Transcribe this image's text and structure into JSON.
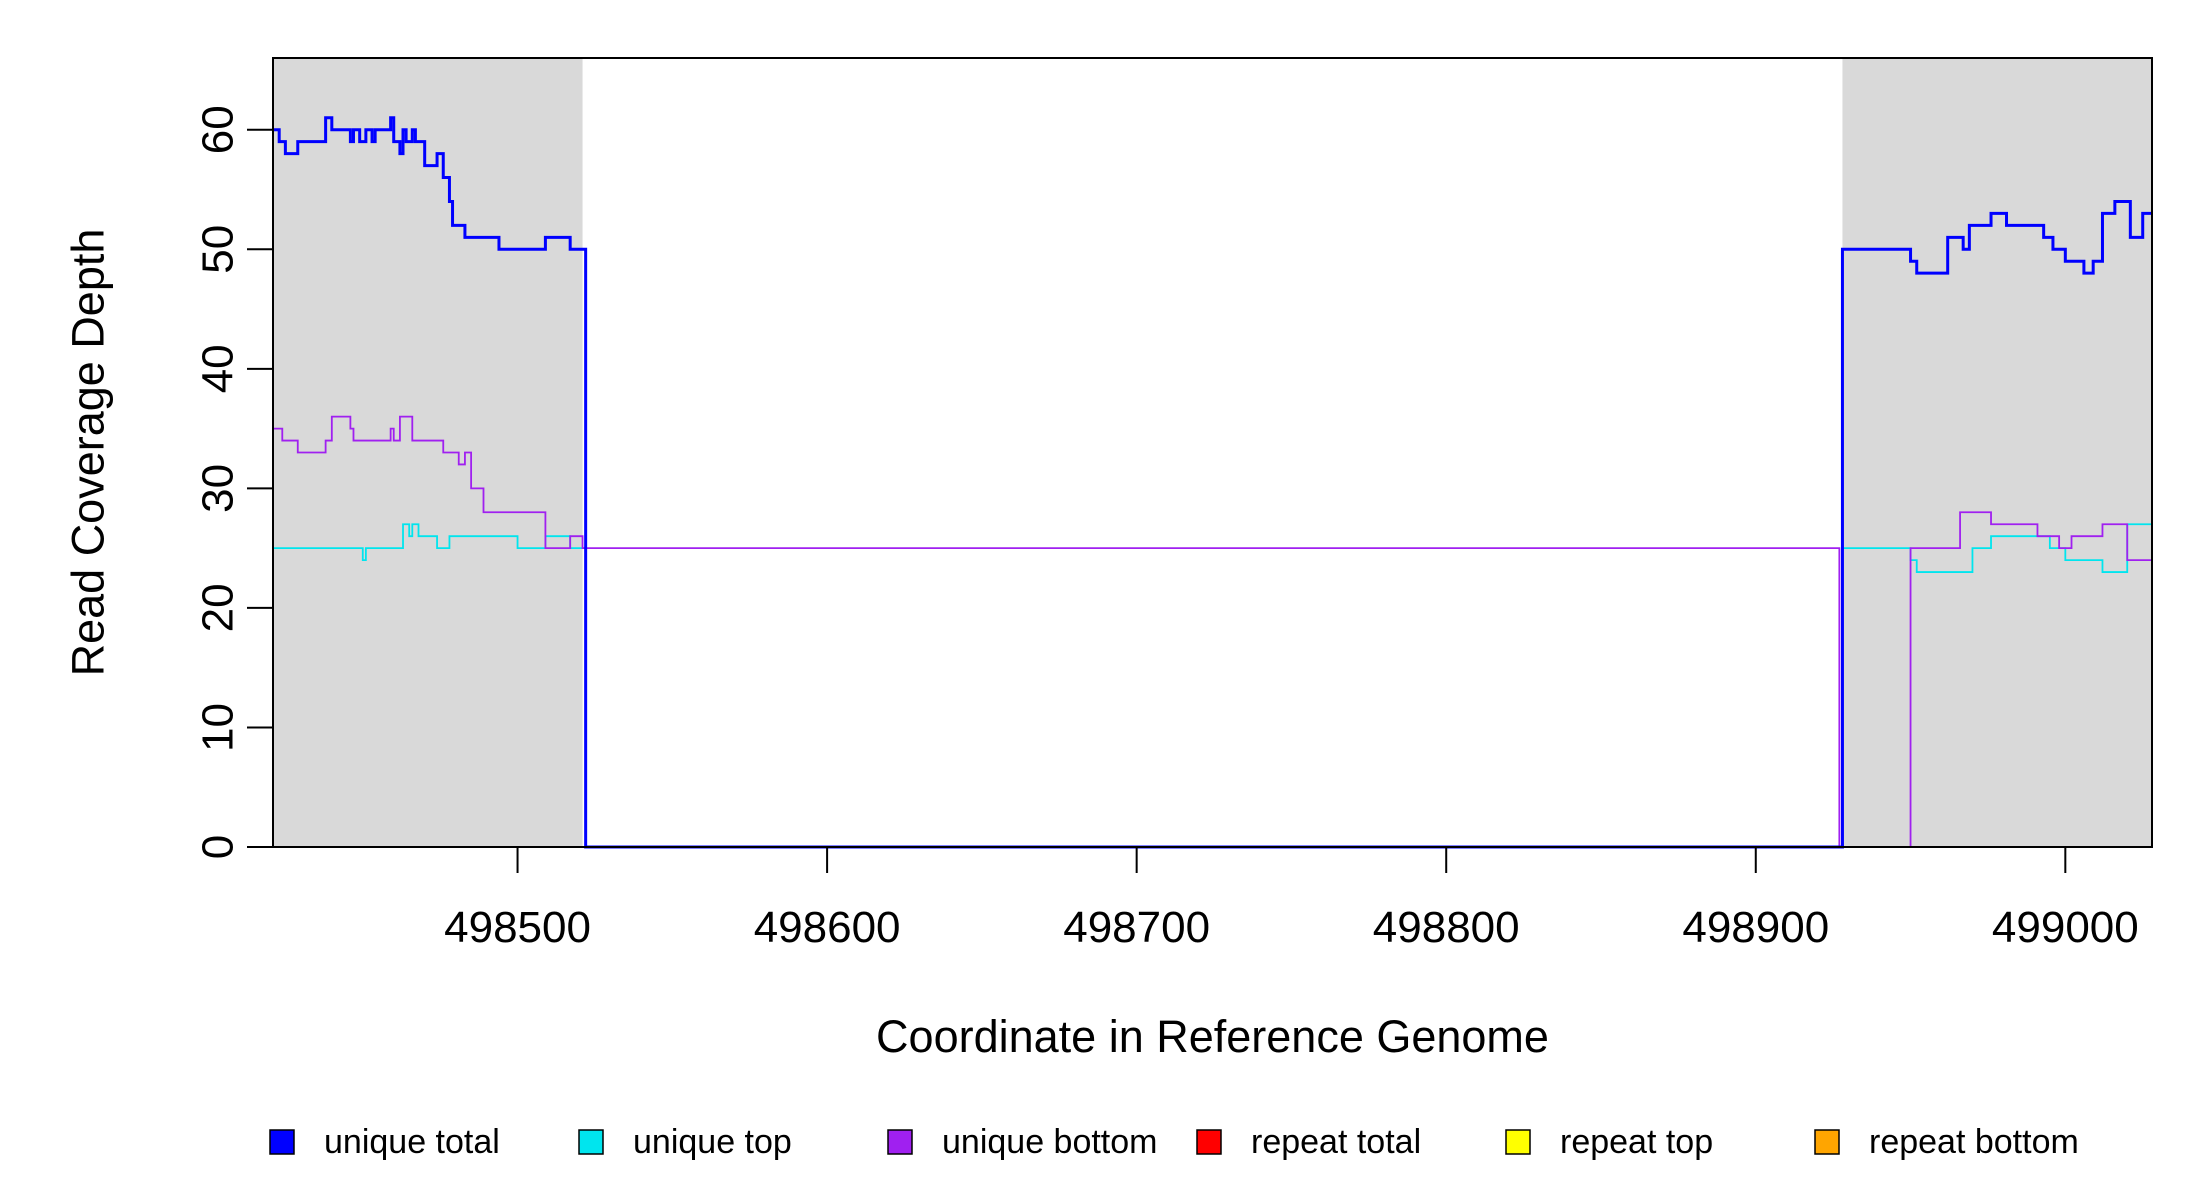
{
  "chart_data": {
    "type": "line",
    "step": true,
    "xlabel": "Coordinate in Reference Genome",
    "ylabel": "Read Coverage Depth",
    "xlim": [
      498421,
      499028
    ],
    "ylim": [
      0,
      66
    ],
    "x_ticks": [
      498500,
      498600,
      498700,
      498800,
      498900,
      499000
    ],
    "x_tick_labels": [
      "498500",
      "498600",
      "498700",
      "498800",
      "498900",
      "499000"
    ],
    "y_ticks": [
      0,
      10,
      20,
      30,
      40,
      50,
      60
    ],
    "y_tick_labels": [
      "0",
      "10",
      "20",
      "30",
      "40",
      "50",
      "60"
    ],
    "shaded_regions": [
      [
        498421,
        498521
      ],
      [
        498928,
        499028
      ]
    ],
    "shade_color": "#d9d9d9",
    "legend_position": "bottom",
    "series": [
      {
        "name": "unique total",
        "color": "#0000ff",
        "x": [
          498421,
          498423,
          498425,
          498429,
          498438,
          498440,
          498446,
          498447,
          498449,
          498451,
          498453,
          498454,
          498456,
          498459,
          498460,
          498462,
          498463,
          498464,
          498466,
          498467,
          498469,
          498470,
          498471,
          498474,
          498476,
          498478,
          498479,
          498481,
          498482,
          498483,
          498484,
          498485,
          498489,
          498494,
          498509,
          498517,
          498521,
          498522,
          498927,
          498928,
          498950,
          498952,
          498962,
          498967,
          498969,
          498976,
          498981,
          498983,
          498993,
          498996,
          499000,
          499006,
          499009,
          499012,
          499016,
          499021,
          499025,
          499028
        ],
        "y": [
          60,
          59,
          58,
          59,
          61,
          60,
          59,
          60,
          59,
          60,
          59,
          60,
          60,
          61,
          59,
          58,
          60,
          59,
          60,
          59,
          59,
          57,
          57,
          58,
          56,
          54,
          52,
          52,
          52,
          51,
          51,
          51,
          51,
          50,
          51,
          50,
          50,
          0,
          0,
          50,
          49,
          48,
          51,
          50,
          52,
          53,
          52,
          52,
          51,
          50,
          49,
          48,
          49,
          53,
          54,
          51,
          53,
          53
        ]
      },
      {
        "name": "unique top",
        "color": "#00e5ee",
        "x": [
          498421,
          498450,
          498451,
          498463,
          498465,
          498466,
          498468,
          498471,
          498474,
          498478,
          498485,
          498490,
          498500,
          498509,
          498517,
          498521,
          498522,
          498927,
          498928,
          498950,
          498952,
          498955,
          498970,
          498976,
          498983,
          498995,
          499000,
          499012,
          499020,
          499028
        ],
        "y": [
          25,
          24,
          25,
          27,
          26,
          27,
          26,
          26,
          25,
          26,
          26,
          26,
          25,
          26,
          25,
          25,
          0,
          0,
          25,
          24,
          23,
          23,
          25,
          26,
          26,
          25,
          24,
          23,
          27,
          28
        ]
      },
      {
        "name": "unique bottom",
        "color": "#a020f0",
        "x": [
          498421,
          498424,
          498429,
          498438,
          498440,
          498446,
          498447,
          498459,
          498460,
          498462,
          498466,
          498476,
          498481,
          498483,
          498485,
          498489,
          498509,
          498517,
          498521,
          498522,
          498927,
          498928,
          498950,
          498961,
          498966,
          498976,
          498991,
          498996,
          498998,
          499002,
          499003,
          499008,
          499012,
          499020,
          499028
        ],
        "y": [
          35,
          34,
          33,
          34,
          36,
          35,
          34,
          35,
          34,
          36,
          34,
          33,
          32,
          33,
          30,
          28,
          25,
          26,
          25,
          25,
          0,
          0,
          25,
          25,
          28,
          27,
          26,
          26,
          25,
          26,
          26,
          26,
          27,
          24,
          24
        ]
      },
      {
        "name": "repeat total",
        "color": "#ff0000",
        "x": [
          498421,
          499028
        ],
        "y": [
          0,
          0
        ]
      },
      {
        "name": "repeat top",
        "color": "#ffff00",
        "x": [
          498421,
          499028
        ],
        "y": [
          0,
          0
        ]
      },
      {
        "name": "repeat bottom",
        "color": "#ffa500",
        "x": [
          498421,
          499028
        ],
        "y": [
          0,
          0
        ]
      }
    ]
  }
}
